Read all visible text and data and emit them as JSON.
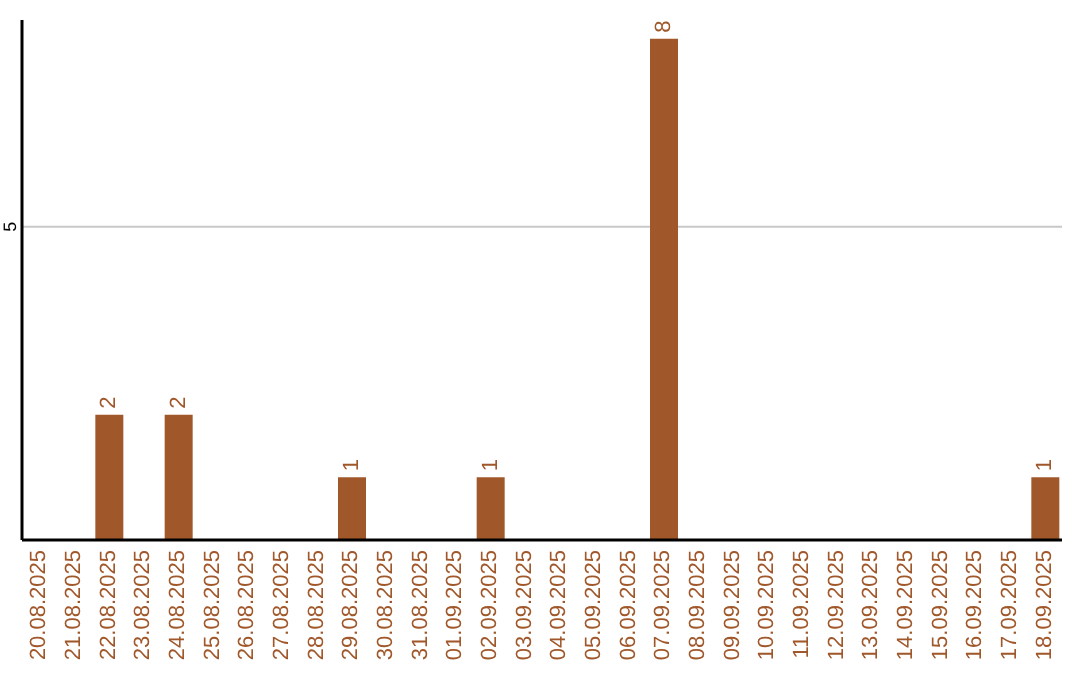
{
  "chart_data": {
    "type": "bar",
    "categories": [
      "20.08.2025",
      "21.08.2025",
      "22.08.2025",
      "23.08.2025",
      "24.08.2025",
      "25.08.2025",
      "26.08.2025",
      "27.08.2025",
      "28.08.2025",
      "29.08.2025",
      "30.08.2025",
      "31.08.2025",
      "01.09.2025",
      "02.09.2025",
      "03.09.2025",
      "04.09.2025",
      "05.09.2025",
      "06.09.2025",
      "07.09.2025",
      "08.09.2025",
      "09.09.2025",
      "10.09.2025",
      "11.09.2025",
      "12.09.2025",
      "13.09.2025",
      "14.09.2025",
      "15.09.2025",
      "16.09.2025",
      "17.09.2025",
      "18.09.2025"
    ],
    "values": [
      0,
      0,
      2,
      0,
      2,
      0,
      0,
      0,
      0,
      1,
      0,
      0,
      0,
      1,
      0,
      0,
      0,
      0,
      8,
      0,
      0,
      0,
      0,
      0,
      0,
      0,
      0,
      0,
      0,
      1
    ],
    "value_labels": [
      null,
      null,
      "2",
      null,
      "2",
      null,
      null,
      null,
      null,
      "1",
      null,
      null,
      null,
      "1",
      null,
      null,
      null,
      null,
      "8",
      null,
      null,
      null,
      null,
      null,
      null,
      null,
      null,
      null,
      null,
      "1"
    ],
    "color": "#a0572a",
    "ylim": [
      0,
      8.3
    ],
    "yticks": [
      5
    ],
    "grid": "y"
  }
}
